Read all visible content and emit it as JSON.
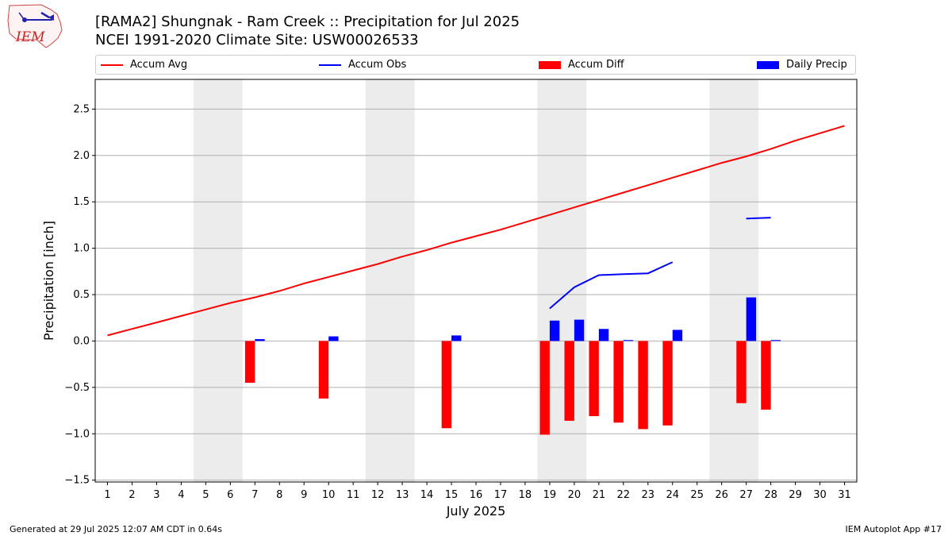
{
  "title": "[RAMA2] Shungnak - Ram Creek :: Precipitation for Jul 2025",
  "subtitle": "NCEI 1991-2020 Climate Site: USW00026533",
  "logo_text": "IEM",
  "legend": [
    {
      "label": "Accum Avg",
      "color": "#ff0000",
      "kind": "line"
    },
    {
      "label": "Accum Obs",
      "color": "#0000ff",
      "kind": "line"
    },
    {
      "label": "Accum Diff",
      "color": "#ff0000",
      "kind": "bar"
    },
    {
      "label": "Daily Precip",
      "color": "#0000ff",
      "kind": "bar"
    }
  ],
  "footer_left": "Generated at 29 Jul 2025 12:07 AM CDT in 0.64s",
  "footer_right": "IEM Autoplot App #17",
  "chart_data": {
    "type": "bar",
    "xlabel": "July 2025",
    "ylabel": "Precipitation [inch]",
    "x": [
      1,
      2,
      3,
      4,
      5,
      6,
      7,
      8,
      9,
      10,
      11,
      12,
      13,
      14,
      15,
      16,
      17,
      18,
      19,
      20,
      21,
      22,
      23,
      24,
      25,
      26,
      27,
      28,
      29,
      30,
      31
    ],
    "xlim": [
      0.5,
      31.5
    ],
    "ylim": [
      -1.52,
      2.82
    ],
    "yticks": [
      -1.5,
      -1.0,
      -0.5,
      0.0,
      0.5,
      1.0,
      1.5,
      2.0,
      2.5
    ],
    "ytick_labels": [
      "−1.5",
      "−1.0",
      "−0.5",
      "0.0",
      "0.5",
      "1.0",
      "1.5",
      "2.0",
      "2.5"
    ],
    "grid": true,
    "legend_position": "top",
    "weekend_bands": [
      [
        4.5,
        6.5
      ],
      [
        11.5,
        13.5
      ],
      [
        18.5,
        20.5
      ],
      [
        25.5,
        27.5
      ]
    ],
    "series": [
      {
        "name": "Accum Avg",
        "type": "line",
        "color": "#ff0000",
        "values": [
          0.06,
          0.13,
          0.2,
          0.27,
          0.34,
          0.41,
          0.47,
          0.54,
          0.62,
          0.69,
          0.76,
          0.83,
          0.91,
          0.98,
          1.06,
          1.13,
          1.2,
          1.28,
          1.36,
          1.44,
          1.52,
          1.6,
          1.68,
          1.76,
          1.84,
          1.92,
          1.99,
          2.07,
          2.16,
          2.24,
          2.32
        ]
      },
      {
        "name": "Accum Obs",
        "type": "line",
        "color": "#0000ff",
        "values": [
          null,
          null,
          null,
          null,
          null,
          null,
          null,
          null,
          null,
          null,
          null,
          null,
          null,
          null,
          null,
          null,
          null,
          null,
          0.35,
          0.58,
          0.71,
          0.72,
          0.73,
          0.85,
          null,
          null,
          1.32,
          1.33,
          null,
          null,
          null
        ]
      },
      {
        "name": "Accum Diff",
        "type": "bar",
        "color": "#ff0000",
        "values": [
          null,
          null,
          null,
          null,
          null,
          null,
          -0.45,
          null,
          null,
          -0.62,
          null,
          null,
          null,
          null,
          -0.94,
          null,
          null,
          null,
          -1.01,
          -0.86,
          -0.81,
          -0.88,
          -0.95,
          -0.91,
          null,
          null,
          -0.67,
          -0.74,
          null,
          null,
          null
        ]
      },
      {
        "name": "Daily Precip",
        "type": "bar",
        "color": "#0000ff",
        "values": [
          null,
          null,
          null,
          null,
          null,
          null,
          0.02,
          null,
          null,
          0.05,
          null,
          null,
          null,
          null,
          0.06,
          null,
          null,
          null,
          0.22,
          0.23,
          0.13,
          0.01,
          null,
          0.12,
          null,
          null,
          0.47,
          0.01,
          null,
          null,
          null
        ]
      }
    ]
  }
}
